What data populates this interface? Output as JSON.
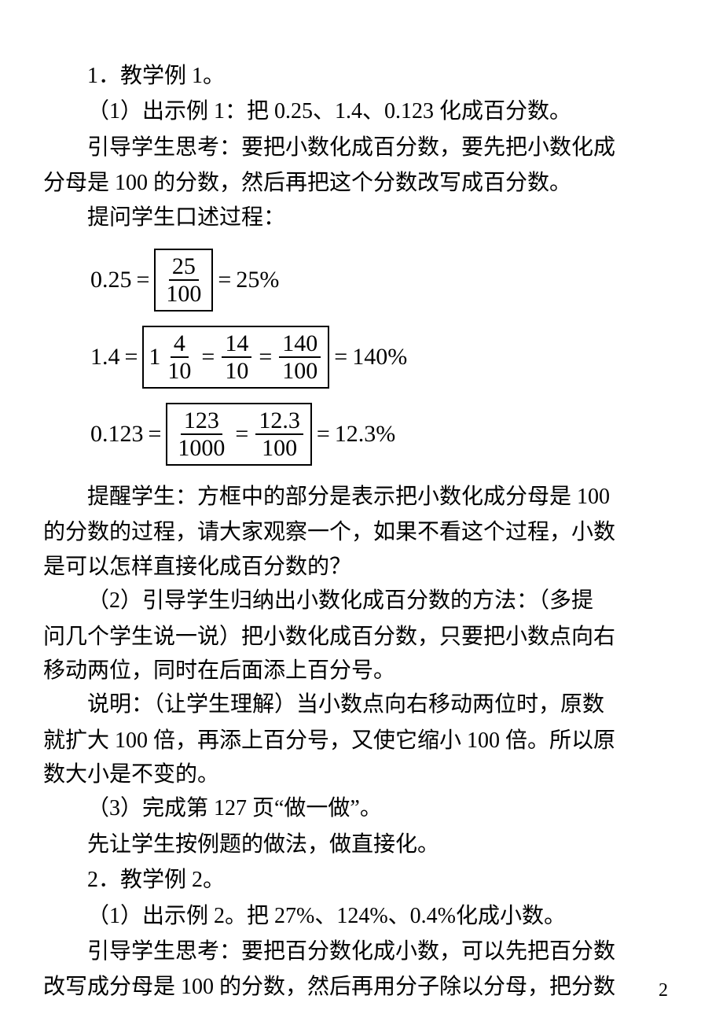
{
  "p1": "1．教学例 1。",
  "p2": "（1）出示例 1：把 0.25、1.4、0.123 化成百分数。",
  "p3": "引导学生思考：要把小数化成百分数，要先把小数化成",
  "p3b": "分母是 100 的分数，然后再把这个分数改写成百分数。",
  "p4": "提问学生口述过程：",
  "eq1": {
    "lhs": "0.25",
    "f1n": "25",
    "f1d": "100",
    "rhs": "25%"
  },
  "eq2": {
    "lhs": "1.4",
    "mint": "1",
    "f1n": "4",
    "f1d": "10",
    "f2n": "14",
    "f2d": "10",
    "f3n": "140",
    "f3d": "100",
    "rhs": "140%"
  },
  "eq3": {
    "lhs": "0.123",
    "f1n": "123",
    "f1d": "1000",
    "f2n": "12.3",
    "f2d": "100",
    "rhs": "12.3%"
  },
  "p5": "提醒学生：方框中的部分是表示把小数化成分母是 100",
  "p5b": "的分数的过程，请大家观察一个，如果不看这个过程，小数",
  "p5c": "是可以怎样直接化成百分数的？",
  "p6": "（2）引导学生归纳出小数化成百分数的方法：（多提",
  "p6b": "问几个学生说一说）把小数化成百分数，只要把小数点向右",
  "p6c": "移动两位，同时在后面添上百分号。",
  "p7": "说明：（让学生理解）当小数点向右移动两位时，原数",
  "p7b": "就扩大 100 倍，再添上百分号，又使它缩小 100 倍。所以原",
  "p7c": "数大小是不变的。",
  "p8": "（3）完成第 127 页“做一做”。",
  "p9": "先让学生按例题的做法，做直接化。",
  "p10": "2．教学例 2。",
  "p11": "（1）出示例 2。把 27%、124%、0.4%化成小数。",
  "p12": "引导学生思考：要把百分数化成小数，可以先把百分数",
  "p12b": "改写成分母是 100 的分数，然后再用分子除以分母，把分数",
  "pagenum": "2",
  "equals": "="
}
